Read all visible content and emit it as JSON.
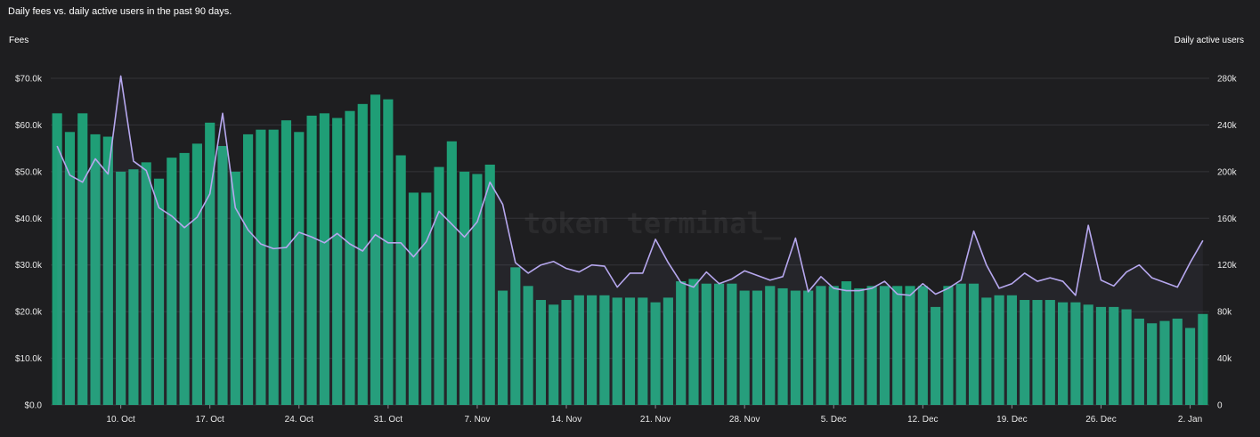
{
  "title": "Daily fees vs. daily active users in the past 90 days.",
  "watermark": "token terminal_",
  "colors": {
    "background": "#1e1e20",
    "bars": "#1f9e76",
    "line": "#b6a7ee",
    "grid": "#343438"
  },
  "chart_data": {
    "type": "bar",
    "title": "Daily fees vs. daily active users in the past 90 days.",
    "left_axis": {
      "label": "Fees",
      "ylim": [
        0,
        70000
      ],
      "ticks": [
        "$0.0",
        "$10.0k",
        "$20.0k",
        "$30.0k",
        "$40.0k",
        "$50.0k",
        "$60.0k",
        "$70.0k"
      ]
    },
    "right_axis": {
      "label": "Daily active users",
      "ylim": [
        0,
        280000
      ],
      "ticks": [
        "0",
        "40k",
        "80k",
        "120k",
        "160k",
        "200k",
        "240k",
        "280k"
      ]
    },
    "x_ticks": [
      {
        "label": "10. Oct",
        "index": 5
      },
      {
        "label": "17. Oct",
        "index": 12
      },
      {
        "label": "24. Oct",
        "index": 19
      },
      {
        "label": "31. Oct",
        "index": 26
      },
      {
        "label": "7. Nov",
        "index": 33
      },
      {
        "label": "14. Nov",
        "index": 40
      },
      {
        "label": "21. Nov",
        "index": 47
      },
      {
        "label": "28. Nov",
        "index": 54
      },
      {
        "label": "5. Dec",
        "index": 61
      },
      {
        "label": "12. Dec",
        "index": 68
      },
      {
        "label": "19. Dec",
        "index": 75
      },
      {
        "label": "26. Dec",
        "index": 82
      },
      {
        "label": "2. Jan",
        "index": 89
      }
    ],
    "grid": true,
    "series": [
      {
        "type": "bar",
        "axis": "left",
        "values": [
          62500,
          58500,
          62500,
          58000,
          57500,
          50000,
          50500,
          52000,
          48500,
          53000,
          54000,
          56000,
          60500,
          55500,
          50000,
          58000,
          59000,
          59000,
          61000,
          58500,
          62000,
          62500,
          61500,
          63000,
          64500,
          66500,
          65500,
          53500,
          45500,
          45500,
          51000,
          56500,
          50000,
          49500,
          51500,
          24500,
          29500,
          25500,
          22500,
          21500,
          22500,
          23500,
          23500,
          23500,
          23000,
          23000,
          23000,
          22000,
          23000,
          26500,
          27000,
          26000,
          26000,
          26000,
          24500,
          24500,
          25500,
          25000,
          24500,
          24500,
          25500,
          25500,
          26500,
          25000,
          25500,
          25500,
          25500,
          25500,
          25500,
          21000,
          25500,
          26000,
          26000,
          23000,
          23500,
          23500,
          22500,
          22500,
          22500,
          22000,
          22000,
          21500,
          21000,
          21000,
          20500,
          18500,
          17500,
          18000,
          18500,
          16500,
          19500
        ]
      },
      {
        "type": "line",
        "axis": "right",
        "values": [
          222000,
          197000,
          191000,
          211000,
          198000,
          282000,
          209000,
          201000,
          169000,
          162000,
          152000,
          161000,
          181000,
          250000,
          169000,
          150000,
          138000,
          134000,
          135000,
          148000,
          144000,
          139000,
          147000,
          138000,
          132000,
          146000,
          139000,
          139000,
          127000,
          140000,
          166000,
          155000,
          144000,
          157000,
          191000,
          172000,
          122000,
          113000,
          120000,
          123000,
          117000,
          114000,
          120000,
          119000,
          101000,
          113000,
          113000,
          142000,
          122000,
          105000,
          101000,
          114000,
          104000,
          108000,
          115000,
          111000,
          107000,
          110000,
          143000,
          97000,
          110000,
          100000,
          98000,
          98000,
          100000,
          106000,
          95000,
          94000,
          104000,
          95000,
          100000,
          107000,
          149000,
          120000,
          100000,
          104000,
          113000,
          106000,
          109000,
          106000,
          94000,
          154000,
          107000,
          102000,
          114000,
          120000,
          109000,
          105000,
          101000,
          122000,
          141000
        ]
      }
    ]
  }
}
